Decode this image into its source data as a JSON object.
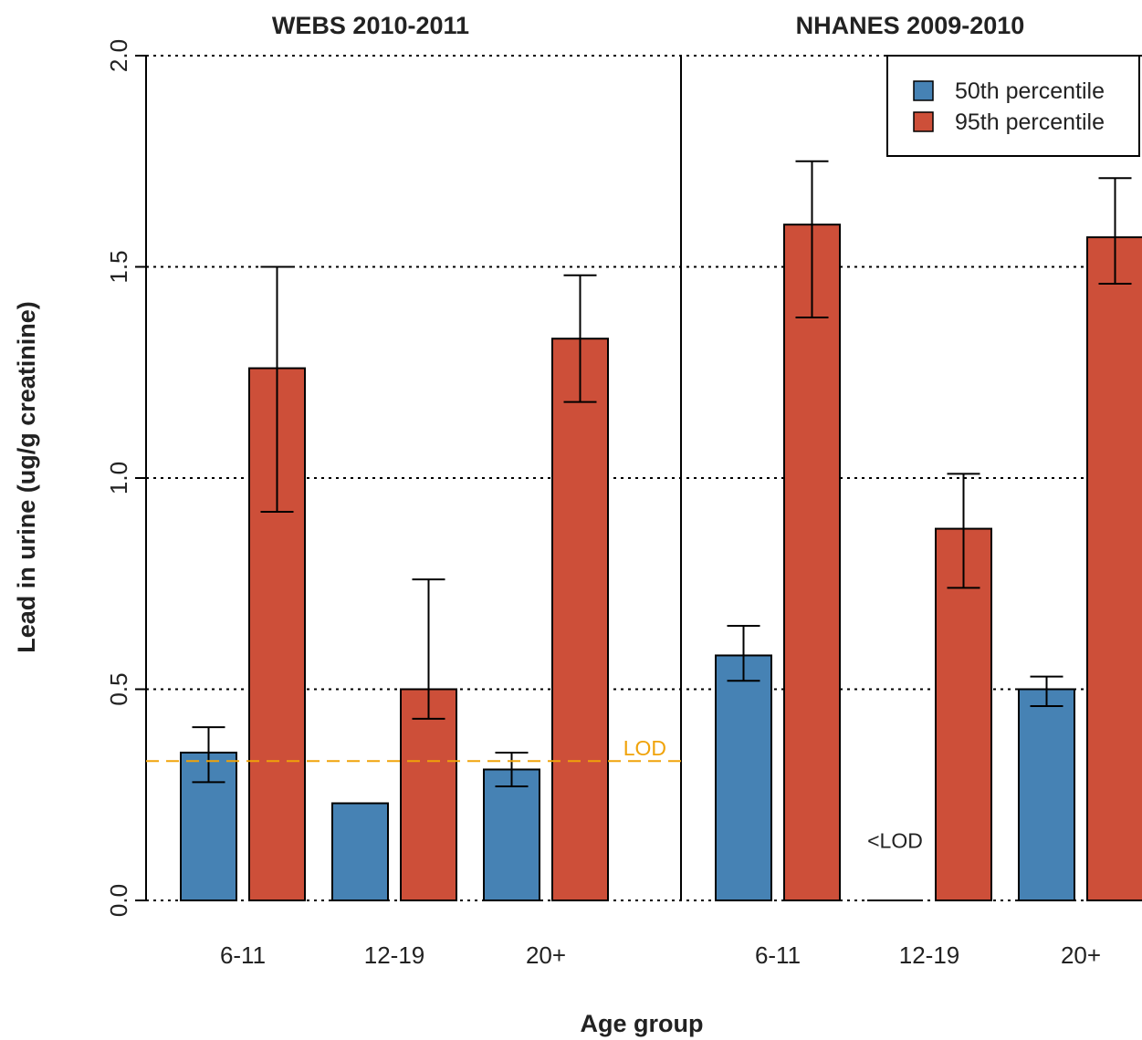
{
  "chart_data": {
    "type": "bar",
    "ylabel": "Lead in urine (ug/g creatinine)",
    "xlabel": "Age group",
    "ylim": [
      0,
      2.0
    ],
    "yticks": [
      "0.0",
      "0.5",
      "1.0",
      "1.5",
      "2.0"
    ],
    "grid": "horizontal dotted",
    "legend_position": "top-right",
    "colors": {
      "p50": "#4682b4",
      "p95": "#cd4f39",
      "lod": "#f0a30a"
    },
    "legend": [
      "50th percentile",
      "95th percentile"
    ],
    "panels": [
      {
        "title": "WEBS 2010-2011",
        "categories": [
          "6-11",
          "12-19",
          "20+"
        ],
        "series": [
          {
            "name": "50th percentile",
            "values": [
              0.35,
              0.23,
              0.31
            ],
            "err_low": [
              0.28,
              null,
              0.27
            ],
            "err_high": [
              0.41,
              null,
              0.35
            ]
          },
          {
            "name": "95th percentile",
            "values": [
              1.26,
              0.5,
              1.33
            ],
            "err_low": [
              0.92,
              0.43,
              1.18
            ],
            "err_high": [
              1.5,
              0.76,
              1.48
            ]
          }
        ],
        "lod": {
          "value": 0.33,
          "label": "LOD"
        }
      },
      {
        "title": "NHANES 2009-2010",
        "categories": [
          "6-11",
          "12-19",
          "20+"
        ],
        "series": [
          {
            "name": "50th percentile",
            "values": [
              0.58,
              null,
              0.5
            ],
            "err_low": [
              0.52,
              null,
              0.46
            ],
            "err_high": [
              0.65,
              null,
              0.53
            ]
          },
          {
            "name": "95th percentile",
            "values": [
              1.6,
              0.88,
              1.57
            ],
            "err_low": [
              1.38,
              0.74,
              1.46
            ],
            "err_high": [
              1.75,
              1.01,
              1.71
            ]
          }
        ],
        "annotation": "<LOD"
      }
    ]
  }
}
